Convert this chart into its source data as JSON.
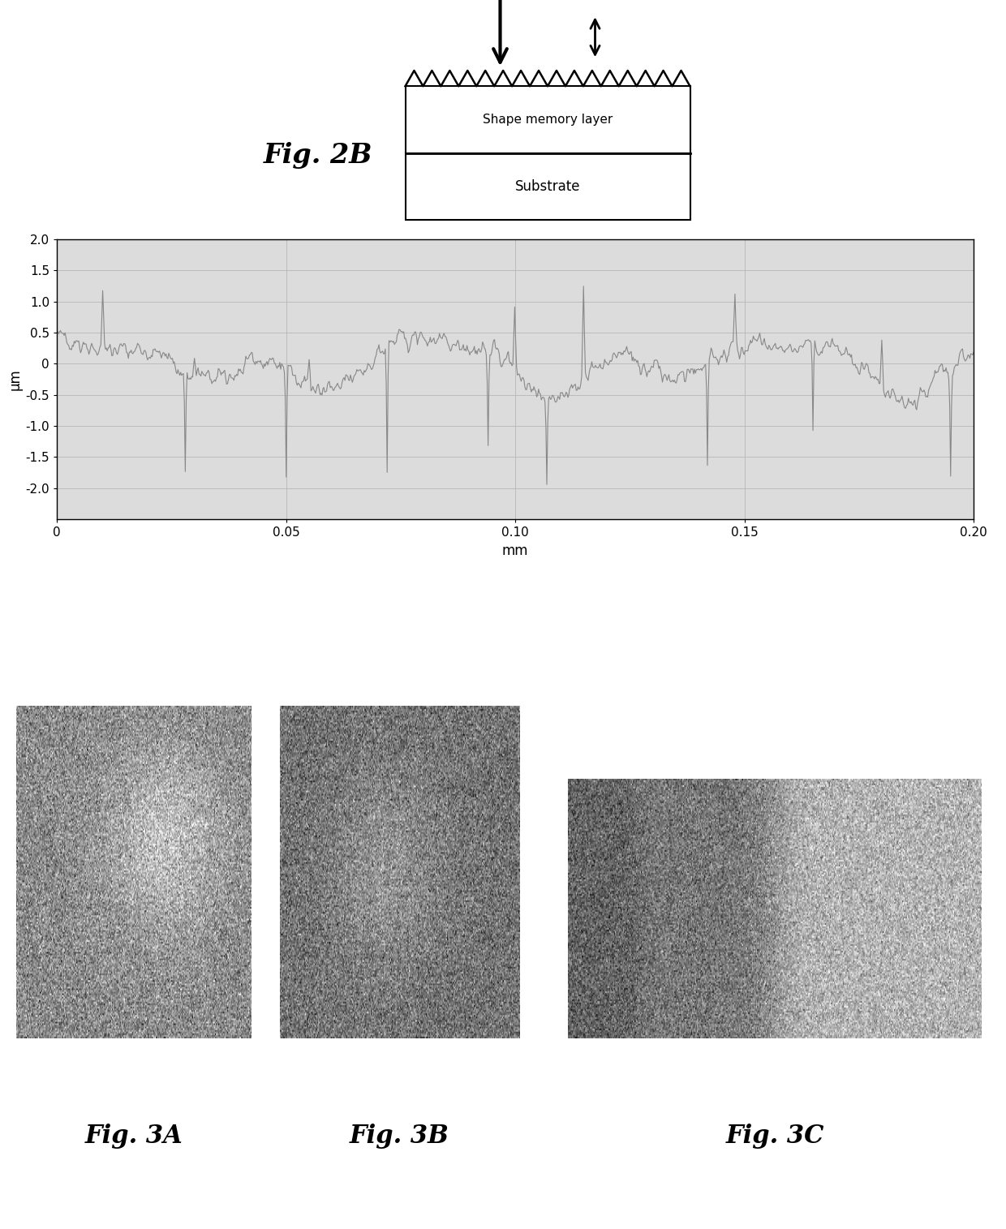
{
  "fig2b_label": "Fig. 2B",
  "shape_memory_layer_text": "Shape memory layer",
  "substrate_text": "Substrate",
  "xlabel": "mm",
  "ylabel": "μm",
  "xlim": [
    0,
    0.2
  ],
  "ylim": [
    -2.5,
    2.0
  ],
  "yticks": [
    -2.0,
    -1.5,
    -1.0,
    -0.5,
    0,
    0.5,
    1.0,
    1.5,
    2.0
  ],
  "xticks": [
    0,
    0.05,
    0.1,
    0.15,
    0.2
  ],
  "fig3a_label": "Fig. 3A",
  "fig3b_label": "Fig. 3B",
  "fig3c_label": "Fig. 3C",
  "line_color": "#888888",
  "grid_color": "#bbbbbb",
  "bg_color": "#dcdcdc"
}
